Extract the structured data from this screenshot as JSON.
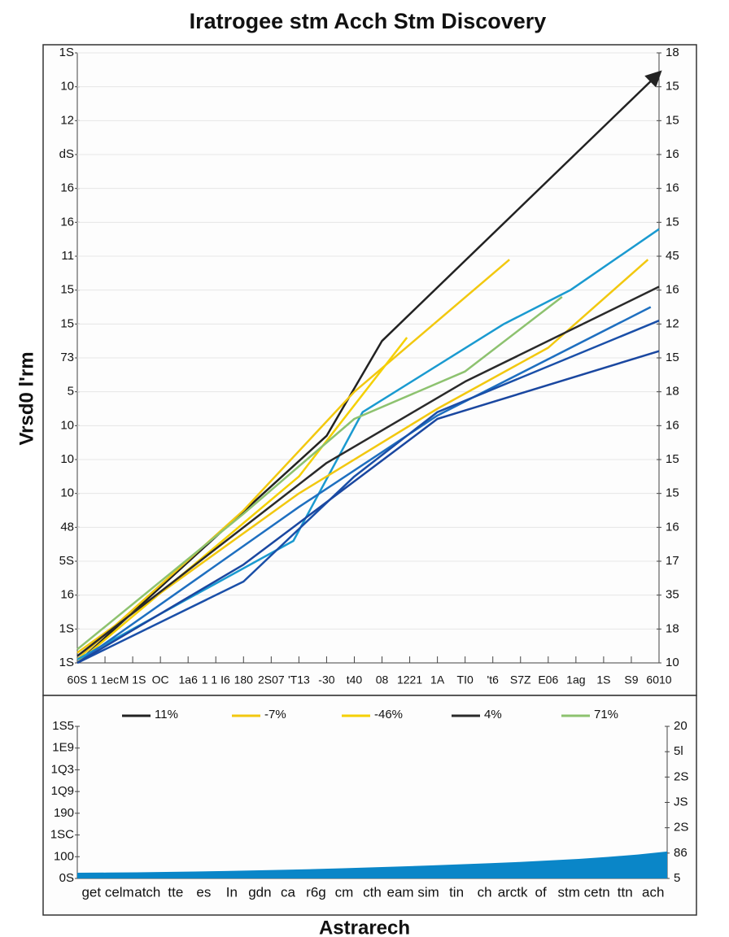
{
  "chart_data": [
    {
      "type": "line",
      "title": "Iratrogee stm Acch Stm Discovery",
      "y_label": "Vrsd0 l'rm",
      "xlim": [
        0,
        21
      ],
      "xticks": [
        {
          "value": 0,
          "label": "60S"
        },
        {
          "value": 1,
          "label": "1 1ec"
        },
        {
          "value": 2,
          "label": "M 1S"
        },
        {
          "value": 3,
          "label": "OC"
        },
        {
          "value": 4,
          "label": "1a6"
        },
        {
          "value": 5,
          "label": "1 1 I6"
        },
        {
          "value": 6,
          "label": "180"
        },
        {
          "value": 7,
          "label": "2S07"
        },
        {
          "value": 8,
          "label": "'T13"
        },
        {
          "value": 9,
          "label": "-30"
        },
        {
          "value": 10,
          "label": "t40"
        },
        {
          "value": 11,
          "label": "08"
        },
        {
          "value": 12,
          "label": "1221"
        },
        {
          "value": 13,
          "label": "1A"
        },
        {
          "value": 14,
          "label": "TI0"
        },
        {
          "value": 15,
          "label": "'t6"
        },
        {
          "value": 16,
          "label": "S7Z"
        },
        {
          "value": 17,
          "label": "E06"
        },
        {
          "value": 18,
          "label": "1ag"
        },
        {
          "value": 19,
          "label": "1S"
        },
        {
          "value": 20,
          "label": "S9"
        },
        {
          "value": 21,
          "label": "6010"
        }
      ],
      "ylim": [
        0,
        18
      ],
      "yticks": [
        {
          "value": 18,
          "label": "1S"
        },
        {
          "value": 17,
          "label": "10"
        },
        {
          "value": 16,
          "label": "12"
        },
        {
          "value": 15,
          "label": "dS"
        },
        {
          "value": 14,
          "label": "16"
        },
        {
          "value": 13,
          "label": "16"
        },
        {
          "value": 12,
          "label": "11"
        },
        {
          "value": 11,
          "label": "15"
        },
        {
          "value": 10,
          "label": "15"
        },
        {
          "value": 9,
          "label": "73"
        },
        {
          "value": 8,
          "label": "5"
        },
        {
          "value": 7,
          "label": "10"
        },
        {
          "value": 6,
          "label": "10"
        },
        {
          "value": 5,
          "label": "10"
        },
        {
          "value": 4,
          "label": "48"
        },
        {
          "value": 3,
          "label": "5S"
        },
        {
          "value": 2,
          "label": "16"
        },
        {
          "value": 1,
          "label": "1S"
        },
        {
          "value": 0,
          "label": "1S"
        }
      ],
      "y2lim": [
        0,
        18
      ],
      "y2ticks": [
        {
          "value": 18,
          "label": "18"
        },
        {
          "value": 17,
          "label": "15"
        },
        {
          "value": 16,
          "label": "15"
        },
        {
          "value": 15,
          "label": "16"
        },
        {
          "value": 14,
          "label": "16"
        },
        {
          "value": 13,
          "label": "15"
        },
        {
          "value": 12,
          "label": "45"
        },
        {
          "value": 11,
          "label": "16"
        },
        {
          "value": 10,
          "label": "12"
        },
        {
          "value": 9,
          "label": "15"
        },
        {
          "value": 8,
          "label": "18"
        },
        {
          "value": 7,
          "label": "16"
        },
        {
          "value": 6,
          "label": "15"
        },
        {
          "value": 5,
          "label": "15"
        },
        {
          "value": 4,
          "label": "16"
        },
        {
          "value": 3,
          "label": "17"
        },
        {
          "value": 2,
          "label": "35"
        },
        {
          "value": 1,
          "label": "18"
        },
        {
          "value": 0,
          "label": "10"
        }
      ],
      "grid": true,
      "series": [
        {
          "name": "11%",
          "color": "#222222",
          "arrow": true,
          "x": [
            0,
            9,
            11,
            21
          ],
          "values": [
            0,
            6.7,
            9.5,
            17.4
          ]
        },
        {
          "name": "-7%",
          "color": "#f2c80f",
          "x": [
            0,
            6,
            10,
            15.6
          ],
          "values": [
            0.1,
            4.5,
            8,
            11.9
          ]
        },
        {
          "name": "-46%",
          "color": "#f5d000",
          "x": [
            0,
            8,
            11.9
          ],
          "values": [
            0,
            5.5,
            9.6
          ]
        },
        {
          "color": "#1a9ad0",
          "x": [
            0,
            7.8,
            10.3,
            15.4,
            17.8,
            21
          ],
          "values": [
            0.1,
            3.6,
            7.4,
            10,
            11,
            12.8
          ]
        },
        {
          "color": "#f2c80f",
          "x": [
            0,
            8,
            13,
            17,
            20.6
          ],
          "values": [
            0.3,
            5,
            7.5,
            9.3,
            11.9
          ]
        },
        {
          "name": "4%",
          "color": "#2a2a2a",
          "x": [
            0,
            9,
            14,
            21
          ],
          "values": [
            0.2,
            5.9,
            8.3,
            11.1
          ]
        },
        {
          "name": "71%",
          "color": "#8dc26f",
          "x": [
            0,
            6,
            10,
            14,
            17.5
          ],
          "values": [
            0.4,
            4.4,
            7.2,
            8.6,
            10.8
          ]
        },
        {
          "color": "#1e6fc0",
          "x": [
            0,
            8,
            13,
            20.7
          ],
          "values": [
            0,
            4.6,
            7.3,
            10.5
          ]
        },
        {
          "color": "#1a4fa8",
          "x": [
            0,
            6,
            10,
            13,
            21
          ],
          "values": [
            0,
            2.4,
            5.5,
            7.4,
            10.1
          ]
        },
        {
          "color": "#1a47a0",
          "x": [
            0,
            6,
            13,
            21
          ],
          "values": [
            0,
            2.9,
            7.2,
            9.2
          ]
        }
      ]
    },
    {
      "type": "area",
      "x_label": "Astrarech",
      "color": "#0a86c8",
      "categories": [
        "get",
        "celm",
        "atch",
        "tte",
        "es",
        "In",
        "gdn",
        "ca",
        "r6g",
        "cm",
        "cth",
        "eam",
        "sim",
        "tin",
        "ch",
        "arctk",
        "of",
        "stm",
        "cetn",
        "ttn",
        "ach"
      ],
      "values": [
        0.26,
        0.27,
        0.28,
        0.3,
        0.32,
        0.34,
        0.37,
        0.4,
        0.43,
        0.47,
        0.51,
        0.55,
        0.6,
        0.65,
        0.7,
        0.76,
        0.83,
        0.9,
        0.99,
        1.1,
        1.24
      ],
      "ylim": [
        0,
        7
      ],
      "yticks": [
        {
          "value": 7,
          "label": "1S5"
        },
        {
          "value": 6,
          "label": "1E9"
        },
        {
          "value": 5,
          "label": "1Q3"
        },
        {
          "value": 4,
          "label": "1Q9"
        },
        {
          "value": 3,
          "label": "190"
        },
        {
          "value": 2,
          "label": "1SC"
        },
        {
          "value": 1,
          "label": "100"
        },
        {
          "value": 0,
          "label": "0S"
        }
      ],
      "y2lim": [
        0,
        6
      ],
      "y2ticks": [
        {
          "value": 6,
          "label": "20"
        },
        {
          "value": 5,
          "label": "5l"
        },
        {
          "value": 4,
          "label": "2S"
        },
        {
          "value": 3,
          "label": "JS"
        },
        {
          "value": 2,
          "label": "2S"
        },
        {
          "value": 1,
          "label": "86"
        },
        {
          "value": 0,
          "label": "5"
        }
      ]
    }
  ]
}
